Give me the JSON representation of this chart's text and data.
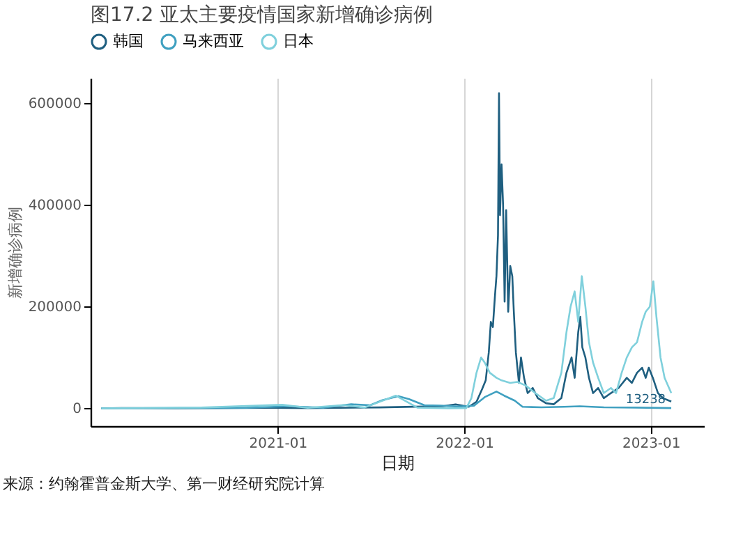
{
  "chart_data": {
    "type": "line",
    "title": "图17.2 亚太主要疫情国家新增确诊病例",
    "xlabel": "日期",
    "ylabel": "新增确诊病例",
    "annotations": [
      "来源：约翰霍普金斯大学、第一财经研究院计算",
      {
        "text": "13238",
        "x": "2023-02-10",
        "y": 13238
      }
    ],
    "xlim": [
      "2020-01-01",
      "2023-04-15"
    ],
    "xticks": [
      "2021-01",
      "2022-01",
      "2023-01"
    ],
    "ylim": [
      -35000,
      650000
    ],
    "yticks": [
      0,
      200000,
      400000,
      600000
    ],
    "grid": "x",
    "legend": "top",
    "series": [
      {
        "name": "韩国",
        "color": "#1f5f80",
        "x": [
          "2020-01-22",
          "2020-03-01",
          "2020-06-01",
          "2020-09-01",
          "2020-12-20",
          "2021-03-01",
          "2021-07-20",
          "2021-09-25",
          "2021-11-20",
          "2021-12-15",
          "2022-01-10",
          "2022-01-25",
          "2022-02-05",
          "2022-02-12",
          "2022-02-18",
          "2022-02-22",
          "2022-02-26",
          "2022-03-02",
          "2022-03-05",
          "2022-03-08",
          "2022-03-10",
          "2022-03-12",
          "2022-03-15",
          "2022-03-18",
          "2022-03-21",
          "2022-03-24",
          "2022-03-28",
          "2022-04-01",
          "2022-04-05",
          "2022-04-08",
          "2022-04-12",
          "2022-04-18",
          "2022-04-22",
          "2022-04-28",
          "2022-05-05",
          "2022-05-15",
          "2022-05-25",
          "2022-06-10",
          "2022-06-25",
          "2022-07-10",
          "2022-07-20",
          "2022-07-30",
          "2022-08-05",
          "2022-08-12",
          "2022-08-16",
          "2022-08-20",
          "2022-08-26",
          "2022-09-02",
          "2022-09-10",
          "2022-09-20",
          "2022-10-01",
          "2022-10-15",
          "2022-10-30",
          "2022-11-15",
          "2022-11-25",
          "2022-12-05",
          "2022-12-15",
          "2022-12-22",
          "2022-12-28",
          "2023-01-05",
          "2023-01-15",
          "2023-01-25",
          "2023-02-10"
        ],
        "values": [
          0,
          600,
          40,
          200,
          1000,
          400,
          1800,
          3200,
          4000,
          7800,
          3000,
          13000,
          38000,
          55000,
          110000,
          170000,
          160000,
          220000,
          260000,
          340000,
          620000,
          380000,
          480000,
          400000,
          210000,
          390000,
          190000,
          280000,
          260000,
          190000,
          110000,
          50000,
          100000,
          60000,
          30000,
          40000,
          20000,
          10000,
          8000,
          20000,
          70000,
          100000,
          60000,
          150000,
          180000,
          120000,
          100000,
          60000,
          30000,
          40000,
          20000,
          30000,
          40000,
          60000,
          50000,
          70000,
          80000,
          60000,
          80000,
          60000,
          30000,
          20000,
          13238
        ]
      },
      {
        "name": "马来西亚",
        "color": "#3fa0c0",
        "x": [
          "2020-01-22",
          "2020-11-01",
          "2021-01-20",
          "2021-04-01",
          "2021-05-25",
          "2021-07-01",
          "2021-07-25",
          "2021-08-25",
          "2021-09-15",
          "2021-10-15",
          "2021-11-15",
          "2021-12-20",
          "2022-01-20",
          "2022-02-10",
          "2022-03-05",
          "2022-03-20",
          "2022-04-10",
          "2022-04-25",
          "2022-06-01",
          "2022-07-15",
          "2022-08-15",
          "2022-10-01",
          "2022-12-01",
          "2023-02-10"
        ],
        "values": [
          0,
          1000,
          4000,
          1200,
          8000,
          6000,
          16000,
          24000,
          18000,
          6000,
          5500,
          3500,
          5000,
          22000,
          33000,
          25000,
          15000,
          3000,
          2000,
          3000,
          4000,
          2000,
          1500,
          500
        ]
      },
      {
        "name": "日本",
        "color": "#7fd0dc",
        "x": [
          "2020-01-22",
          "2020-04-10",
          "2020-08-05",
          "2021-01-10",
          "2021-03-01",
          "2021-05-10",
          "2021-06-20",
          "2021-08-20",
          "2021-10-01",
          "2021-12-01",
          "2022-01-05",
          "2022-01-15",
          "2022-01-25",
          "2022-02-03",
          "2022-02-10",
          "2022-02-20",
          "2022-03-05",
          "2022-03-15",
          "2022-04-01",
          "2022-04-15",
          "2022-05-01",
          "2022-05-20",
          "2022-06-10",
          "2022-06-25",
          "2022-07-10",
          "2022-07-20",
          "2022-07-28",
          "2022-08-05",
          "2022-08-12",
          "2022-08-19",
          "2022-08-26",
          "2022-09-02",
          "2022-09-10",
          "2022-09-20",
          "2022-10-01",
          "2022-10-15",
          "2022-10-25",
          "2022-11-05",
          "2022-11-15",
          "2022-11-25",
          "2022-12-05",
          "2022-12-15",
          "2022-12-22",
          "2022-12-30",
          "2023-01-06",
          "2023-01-12",
          "2023-01-20",
          "2023-01-28",
          "2023-02-10"
        ],
        "values": [
          0,
          600,
          1500,
          7000,
          1000,
          6500,
          1500,
          25000,
          1500,
          100,
          500,
          20000,
          70000,
          100000,
          90000,
          70000,
          60000,
          55000,
          50000,
          52000,
          45000,
          30000,
          15000,
          20000,
          70000,
          150000,
          200000,
          230000,
          170000,
          260000,
          200000,
          130000,
          90000,
          60000,
          30000,
          40000,
          30000,
          70000,
          100000,
          120000,
          130000,
          170000,
          190000,
          200000,
          250000,
          180000,
          100000,
          60000,
          30000
        ]
      }
    ]
  }
}
